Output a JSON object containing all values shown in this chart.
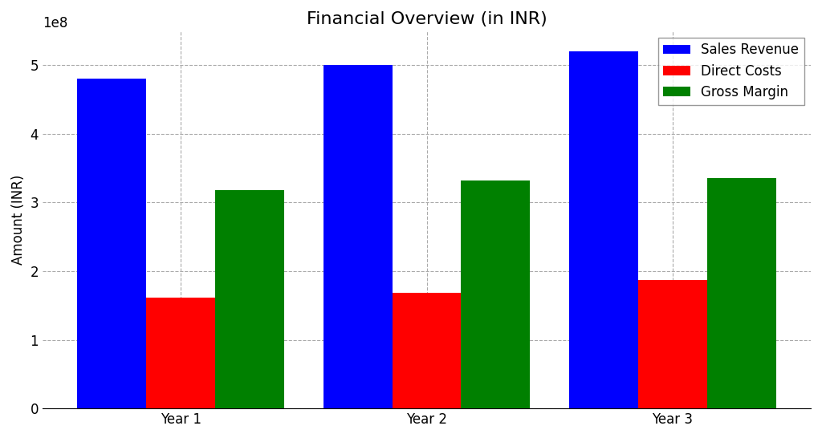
{
  "title": "Financial Overview (in INR)",
  "ylabel": "Amount (INR)",
  "categories": [
    "Year 1",
    "Year 2",
    "Year 3"
  ],
  "series": {
    "Sales Revenue": [
      480000000.0,
      500000000.0,
      520000000.0
    ],
    "Direct Costs": [
      162000000.0,
      168000000.0,
      187000000.0
    ],
    "Gross Margin": [
      318000000.0,
      332000000.0,
      335000000.0
    ]
  },
  "colors": {
    "Sales Revenue": "#0000ff",
    "Direct Costs": "#ff0000",
    "Gross Margin": "#008000"
  },
  "ylim": [
    0,
    550000000.0
  ],
  "bar_width": 0.28,
  "background_color": "#ffffff",
  "grid_color": "#aaaaaa",
  "title_fontsize": 16,
  "label_fontsize": 12,
  "tick_fontsize": 12
}
